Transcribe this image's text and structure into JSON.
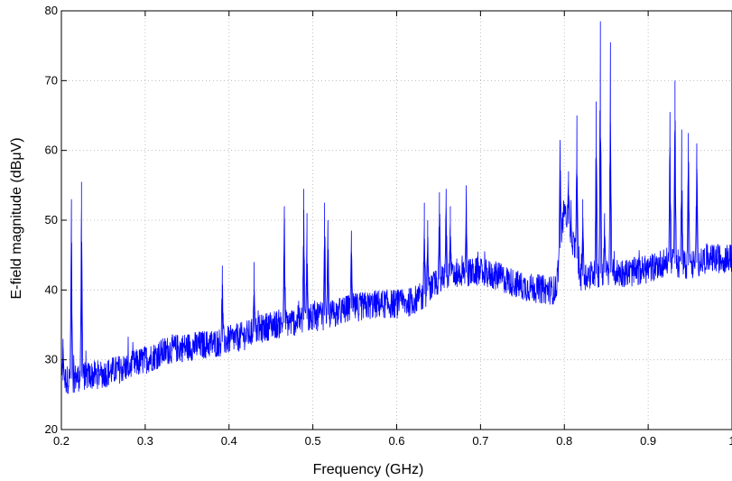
{
  "chart_data": {
    "type": "line",
    "title": "",
    "xlabel": "Frequency (GHz)",
    "ylabel": "E-field magnitude (dBμV)",
    "xlim": [
      0.2,
      1.0
    ],
    "ylim": [
      20,
      80
    ],
    "grid": true,
    "line_color": "#0000ff",
    "x_ticks": [
      "0.2",
      "0.3",
      "0.4",
      "0.5",
      "0.6",
      "0.7",
      "0.8",
      "0.9",
      "1"
    ],
    "y_ticks": [
      "20",
      "30",
      "40",
      "50",
      "60",
      "70",
      "80"
    ],
    "series": [
      {
        "baseline": {
          "x": [
            0.2,
            0.22,
            0.25,
            0.28,
            0.3,
            0.33,
            0.36,
            0.39,
            0.42,
            0.45,
            0.48,
            0.5,
            0.52,
            0.55,
            0.58,
            0.61,
            0.63,
            0.65,
            0.68,
            0.7,
            0.72,
            0.75,
            0.78,
            0.79,
            0.8,
            0.82,
            0.85,
            0.88,
            0.9,
            0.92,
            0.95,
            0.97,
            1.0
          ],
          "y": [
            27,
            27.5,
            28,
            29,
            30,
            31.5,
            32,
            32.5,
            33.5,
            35,
            35.5,
            36,
            36.5,
            37.5,
            38,
            38,
            39,
            41.5,
            42.5,
            42.5,
            42,
            40.5,
            40,
            40,
            52,
            42,
            42.5,
            42.5,
            43,
            44,
            43.5,
            44.5,
            44.5
          ]
        },
        "peaks": {
          "x": [
            0.202,
            0.212,
            0.224,
            0.392,
            0.43,
            0.466,
            0.489,
            0.493,
            0.514,
            0.518,
            0.546,
            0.633,
            0.637,
            0.651,
            0.659,
            0.664,
            0.683,
            0.795,
            0.805,
            0.815,
            0.822,
            0.838,
            0.843,
            0.848,
            0.855,
            0.926,
            0.932,
            0.94,
            0.948,
            0.958
          ],
          "y": [
            33,
            53,
            55.5,
            43.5,
            44,
            52,
            54.5,
            51,
            52.5,
            50,
            48.5,
            52.5,
            50,
            54,
            54.5,
            52,
            55,
            61.5,
            57,
            65,
            53,
            67,
            78.5,
            51,
            75.5,
            65.5,
            70,
            63,
            62.5,
            61
          ]
        }
      }
    ]
  }
}
